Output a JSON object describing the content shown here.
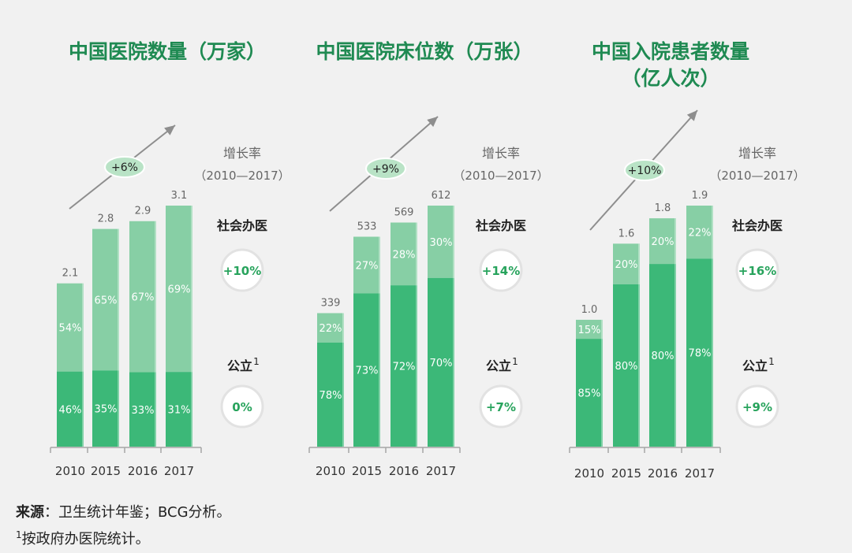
{
  "chart_data": [
    {
      "type": "bar",
      "title": "中国医院数量（万家）",
      "categories": [
        "2010",
        "2015",
        "2016",
        "2017"
      ],
      "totals": [
        "2.1",
        "2.8",
        "2.9",
        "3.1"
      ],
      "values": [
        2.1,
        2.8,
        2.9,
        3.1
      ],
      "series": [
        {
          "name": "公立",
          "values": [
            46,
            35,
            33,
            31
          ],
          "labels": [
            "46%",
            "35%",
            "33%",
            "31%"
          ],
          "color": "#3cb878"
        },
        {
          "name": "社会办医",
          "values": [
            54,
            65,
            67,
            69
          ],
          "labels": [
            "54%",
            "65%",
            "67%",
            "69%"
          ],
          "color": "#87cfa5"
        }
      ],
      "overall_growth": "+6%",
      "growth_title": "增长率",
      "growth_period": "（2010—2017）",
      "private_label": "社会办医",
      "private_growth": "+10%",
      "public_label": "公立",
      "public_sup": "1",
      "public_growth": "0%"
    },
    {
      "type": "bar",
      "title": "中国医院床位数（万张）",
      "categories": [
        "2010",
        "2015",
        "2016",
        "2017"
      ],
      "totals": [
        "339",
        "533",
        "569",
        "612"
      ],
      "values": [
        339,
        533,
        569,
        612
      ],
      "series": [
        {
          "name": "公立",
          "values": [
            78,
            73,
            72,
            70
          ],
          "labels": [
            "78%",
            "73%",
            "72%",
            "70%"
          ],
          "color": "#3cb878"
        },
        {
          "name": "社会办医",
          "values": [
            22,
            27,
            28,
            30
          ],
          "labels": [
            "22%",
            "27%",
            "28%",
            "30%"
          ],
          "color": "#87cfa5"
        }
      ],
      "overall_growth": "+9%",
      "growth_title": "增长率",
      "growth_period": "（2010—2017）",
      "private_label": "社会办医",
      "private_growth": "+14%",
      "public_label": "公立",
      "public_sup": "1",
      "public_growth": "+7%"
    },
    {
      "type": "bar",
      "title": "中国入院患者数量",
      "title_line2": "（亿人次）",
      "categories": [
        "2010",
        "2015",
        "2016",
        "2017"
      ],
      "totals": [
        "1.0",
        "1.6",
        "1.8",
        "1.9"
      ],
      "values": [
        1.0,
        1.6,
        1.8,
        1.9
      ],
      "series": [
        {
          "name": "公立",
          "values": [
            85,
            80,
            80,
            78
          ],
          "labels": [
            "85%",
            "80%",
            "80%",
            "78%"
          ],
          "color": "#3cb878"
        },
        {
          "name": "社会办医",
          "values": [
            15,
            20,
            20,
            22
          ],
          "labels": [
            "15%",
            "20%",
            "20%",
            "22%"
          ],
          "color": "#87cfa5"
        }
      ],
      "overall_growth": "+10%",
      "growth_title": "增长率",
      "growth_period": "（2010—2017）",
      "private_label": "社会办医",
      "private_growth": "+16%",
      "public_label": "公立",
      "public_sup": "1",
      "public_growth": "+9%"
    }
  ],
  "colors": {
    "title_green": "#1f8a52",
    "badge_green": "#27a35c",
    "tag_fill": "#b9e3c6",
    "arrow": "#8e8e8e",
    "axis": "#a6a6a6",
    "text_gray": "#666666"
  },
  "footer": {
    "source_label": "来源",
    "source_text": "：卫生统计年鉴；BCG分析。",
    "note_sup": "1",
    "note_text": "按政府办医院统计。"
  }
}
